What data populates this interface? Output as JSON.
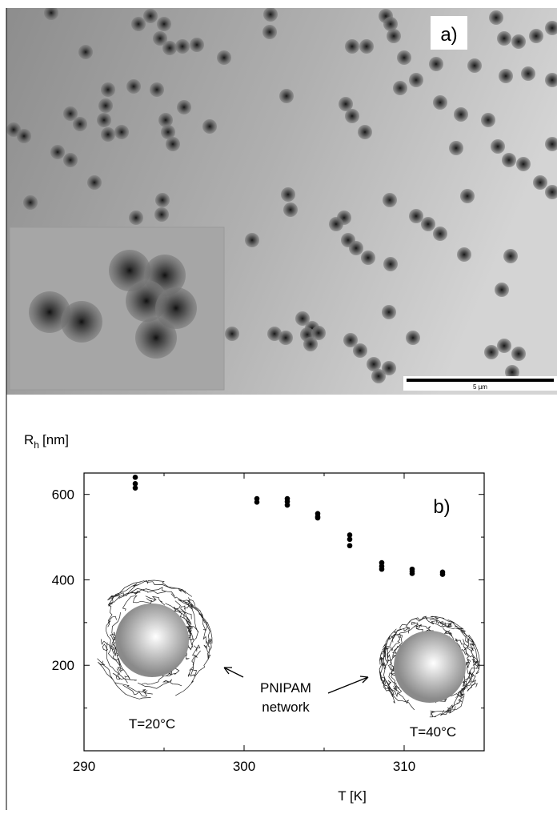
{
  "panel_a": {
    "label": "a)",
    "scale_bar": "5 µm"
  },
  "chart_data": {
    "type": "scatter",
    "label": "b)",
    "y_label": {
      "symbol": "R",
      "subscript": "h",
      "unit": "[nm]"
    },
    "x_label": "T [K]",
    "series": [
      {
        "color": "#000000",
        "x": [
          293.2,
          293.2,
          293.2,
          300.8,
          300.8,
          302.7,
          302.7,
          302.7,
          304.6,
          304.6,
          304.6,
          306.6,
          306.6,
          306.6,
          308.6,
          308.6,
          308.6,
          310.5,
          310.5,
          310.5,
          312.4,
          312.4
        ],
        "values": [
          640,
          625,
          615,
          590,
          582,
          590,
          583,
          575,
          555,
          548,
          545,
          505,
          495,
          480,
          440,
          432,
          425,
          425,
          420,
          415,
          418,
          413
        ]
      }
    ],
    "xlim": [
      290,
      315
    ],
    "ylim": [
      0,
      650
    ],
    "xticks": [
      290,
      300,
      310
    ],
    "yticks": [
      200,
      400,
      600
    ],
    "xticks_minor": [
      295,
      305
    ],
    "yticks_minor": [
      100,
      300,
      500
    ],
    "annotations": {
      "cold": "T=20°C",
      "hot": "T=40°C",
      "network_1": "PNIPAM",
      "network_2": "network"
    }
  }
}
